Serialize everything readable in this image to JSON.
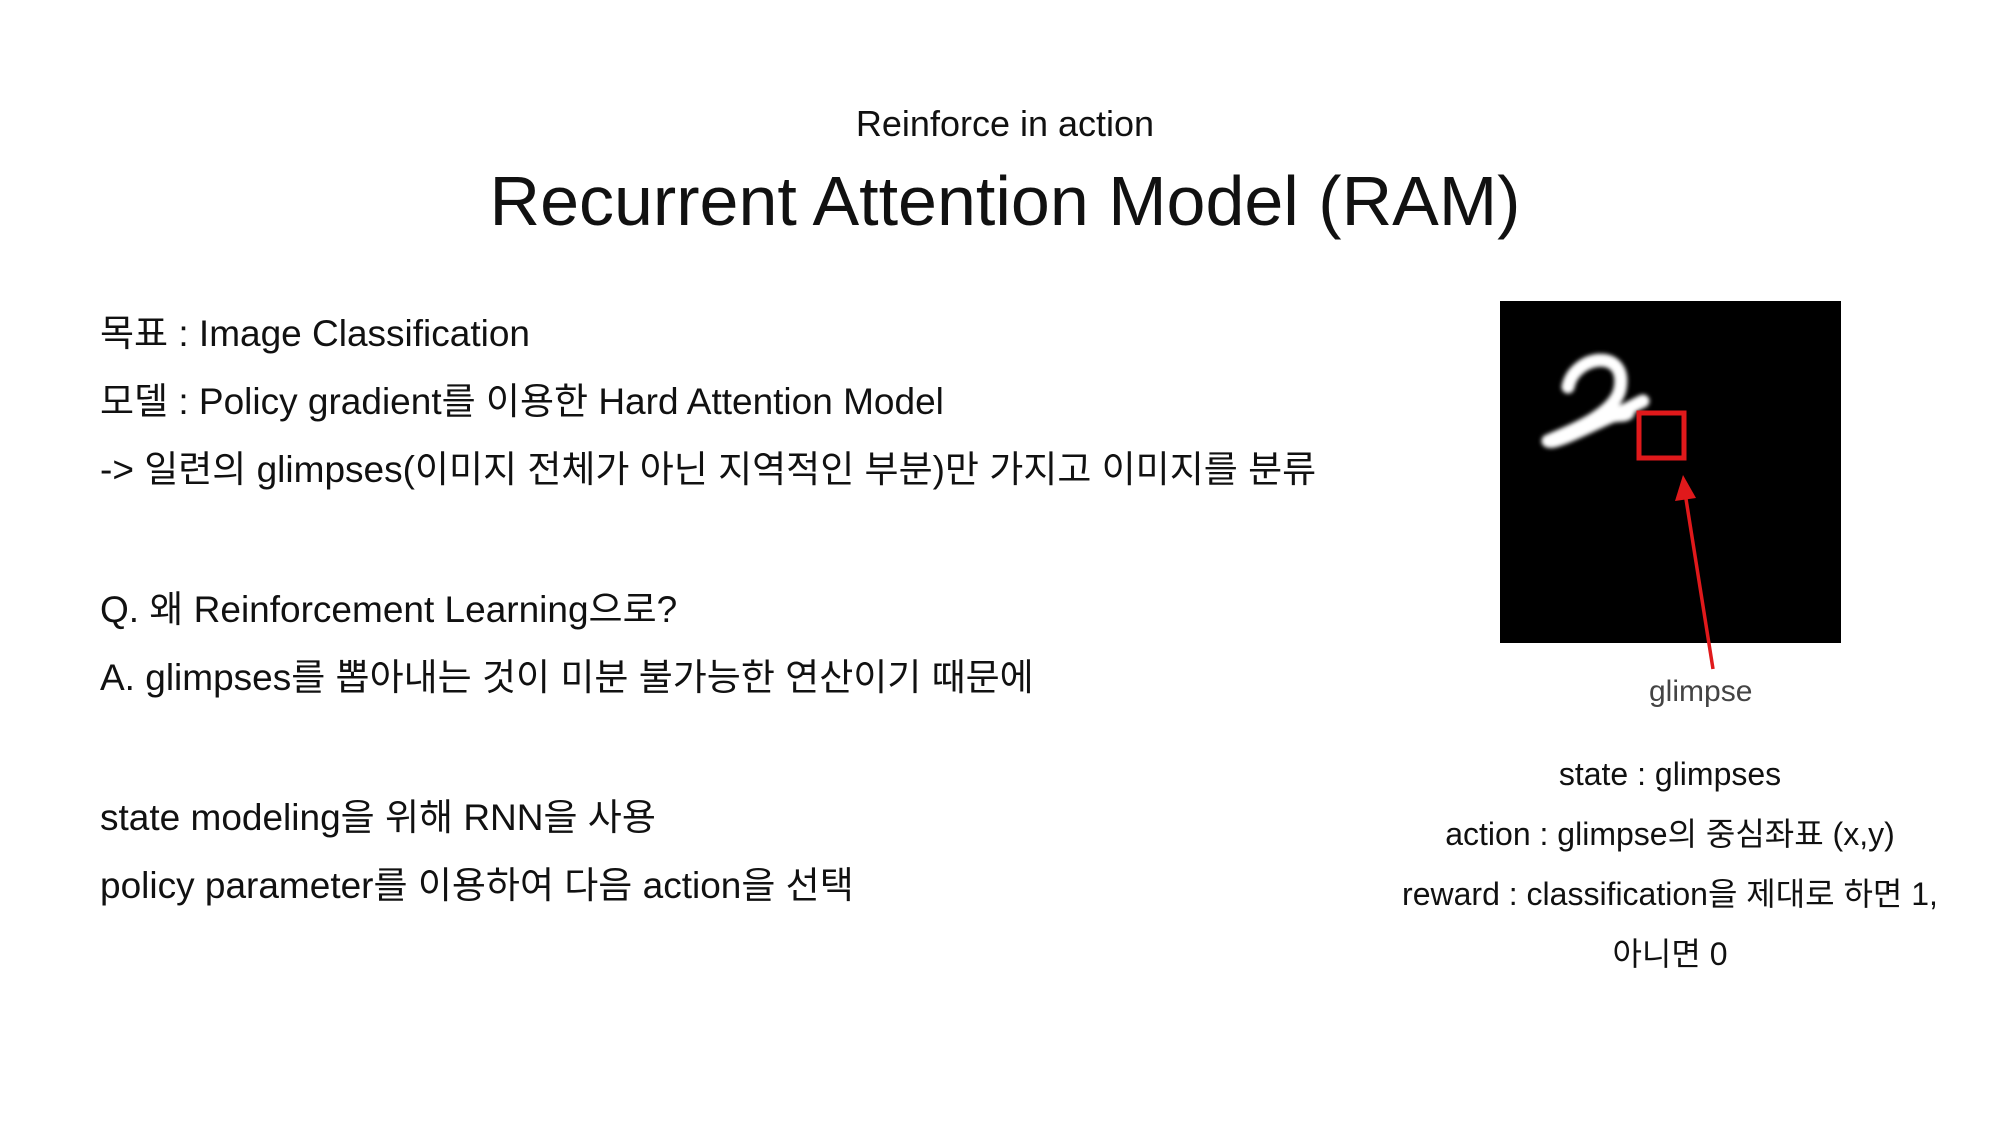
{
  "slide": {
    "subtitle": "Reinforce in action",
    "title": "Recurrent Attention Model (RAM)"
  },
  "left_body": {
    "goal": "목표 : Image Classification",
    "model": "모델 : Policy gradient를 이용한 Hard Attention Model",
    "glimpses_desc": "-> 일련의 glimpses(이미지 전체가 아닌 지역적인 부분)만 가지고 이미지를 분류",
    "question": "Q. 왜 Reinforcement Learning으로?",
    "answer": "A.  glimpses를 뽑아내는 것이 미분 불가능한 연산이기 때문에",
    "rnn_line": "state modeling을 위해 RNN을 사용",
    "policy_line": "policy parameter를 이용하여 다음 action을 선택"
  },
  "figure": {
    "caption": "glimpse",
    "background_color": "#000000",
    "glimpse_box_color": "#e0191b",
    "arrow_color": "#e0191b"
  },
  "right_body": {
    "state": "state : glimpses",
    "action": "action : glimpse의 중심좌표 (x,y)",
    "reward": "reward : classification을 제대로 하면 1,",
    "reward_else": "아니면 0"
  }
}
